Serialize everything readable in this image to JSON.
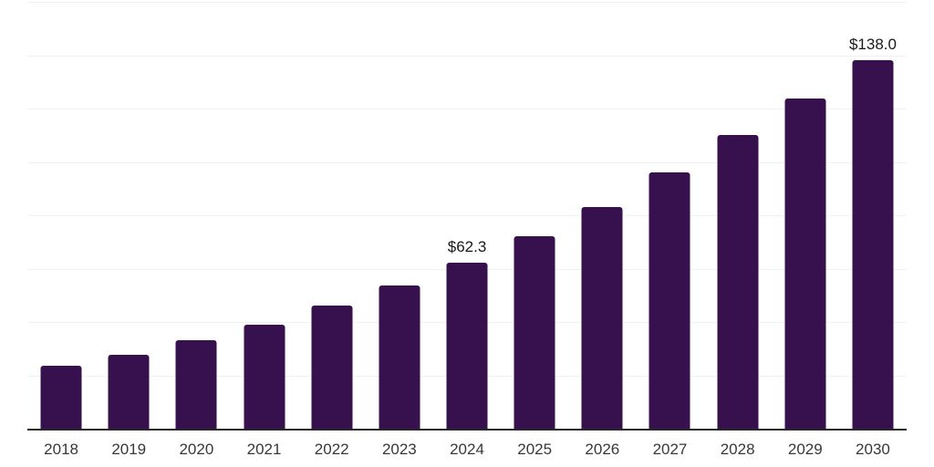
{
  "chart_data": {
    "type": "bar",
    "title": "",
    "xlabel": "",
    "ylabel": "",
    "categories": [
      "2018",
      "2019",
      "2020",
      "2021",
      "2022",
      "2023",
      "2024",
      "2025",
      "2026",
      "2027",
      "2028",
      "2029",
      "2030"
    ],
    "values": [
      23.6,
      27.7,
      33.1,
      38.9,
      46.0,
      53.7,
      62.3,
      72.1,
      83.0,
      96.0,
      110.0,
      123.7,
      138.0
    ],
    "data_labels": {
      "2024": "$62.3",
      "2030": "$138.0"
    },
    "ylim": [
      0,
      160
    ],
    "gridline_interval": 20,
    "grid": true,
    "legend": false,
    "colors": {
      "bar": "#37104e",
      "background": "#ffffff",
      "gridline": "#f2f2f2",
      "axis_line": "#282828",
      "tick_label": "#383838",
      "data_label": "#191919"
    }
  }
}
